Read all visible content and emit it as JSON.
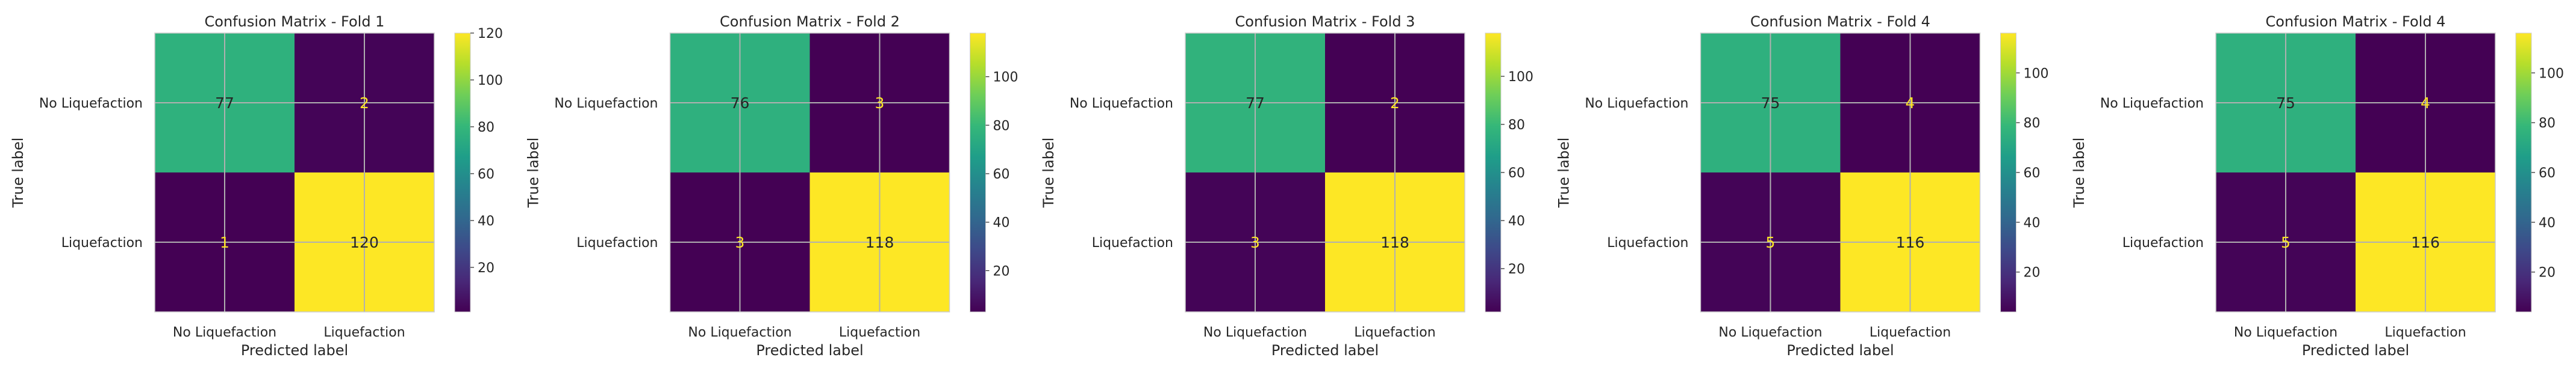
{
  "colors": {
    "low": "#440154",
    "mid": "#21918c",
    "high": "#fde725",
    "grid": "#b0b0b0",
    "text_dark": "#262626",
    "text_on_light": "#262626",
    "text_on_dark": "#fde725"
  },
  "chart_data": [
    {
      "type": "heatmap",
      "title": "Confusion Matrix - Fold 1",
      "xlabel": "Predicted label",
      "ylabel": "True label",
      "x_categories": [
        "No Liquefaction",
        "Liquefaction"
      ],
      "y_categories": [
        "No Liquefaction",
        "Liquefaction"
      ],
      "values": [
        [
          77,
          2
        ],
        [
          1,
          120
        ]
      ],
      "colorbar": {
        "min": 1,
        "max": 120,
        "ticks": [
          20,
          40,
          60,
          80,
          100,
          120
        ]
      }
    },
    {
      "type": "heatmap",
      "title": "Confusion Matrix - Fold 2",
      "xlabel": "Predicted label",
      "ylabel": "True label",
      "x_categories": [
        "No Liquefaction",
        "Liquefaction"
      ],
      "y_categories": [
        "No Liquefaction",
        "Liquefaction"
      ],
      "values": [
        [
          76,
          3
        ],
        [
          3,
          118
        ]
      ],
      "colorbar": {
        "min": 3,
        "max": 118,
        "ticks": [
          20,
          40,
          60,
          80,
          100
        ]
      }
    },
    {
      "type": "heatmap",
      "title": "Confusion Matrix - Fold 3",
      "xlabel": "Predicted label",
      "ylabel": "True label",
      "x_categories": [
        "No Liquefaction",
        "Liquefaction"
      ],
      "y_categories": [
        "No Liquefaction",
        "Liquefaction"
      ],
      "values": [
        [
          77,
          2
        ],
        [
          3,
          118
        ]
      ],
      "colorbar": {
        "min": 2,
        "max": 118,
        "ticks": [
          20,
          40,
          60,
          80,
          100
        ]
      }
    },
    {
      "type": "heatmap",
      "title": "Confusion Matrix - Fold 4",
      "xlabel": "Predicted label",
      "ylabel": "True label",
      "x_categories": [
        "No Liquefaction",
        "Liquefaction"
      ],
      "y_categories": [
        "No Liquefaction",
        "Liquefaction"
      ],
      "values": [
        [
          75,
          4
        ],
        [
          5,
          116
        ]
      ],
      "colorbar": {
        "min": 4,
        "max": 116,
        "ticks": [
          20,
          40,
          60,
          80,
          100
        ]
      }
    },
    {
      "type": "heatmap",
      "title": "Confusion Matrix - Fold 4",
      "xlabel": "Predicted label",
      "ylabel": "True label",
      "x_categories": [
        "No Liquefaction",
        "Liquefaction"
      ],
      "y_categories": [
        "No Liquefaction",
        "Liquefaction"
      ],
      "values": [
        [
          75,
          4
        ],
        [
          5,
          116
        ]
      ],
      "colorbar": {
        "min": 4,
        "max": 116,
        "ticks": [
          20,
          40,
          60,
          80,
          100
        ]
      }
    }
  ]
}
